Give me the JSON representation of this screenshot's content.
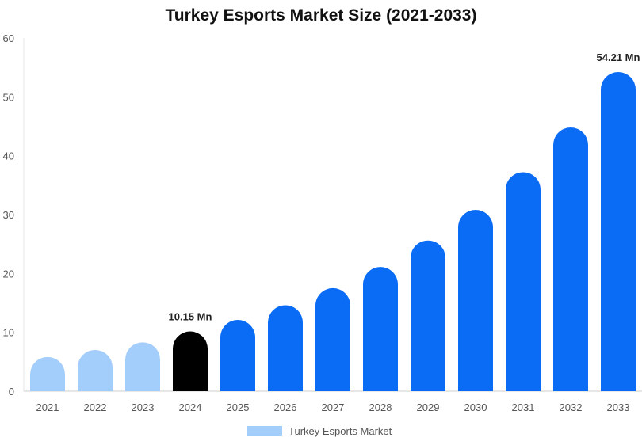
{
  "chart_data": {
    "type": "bar",
    "title": "Turkey Esports Market Size (2021-2033)",
    "categories": [
      "2021",
      "2022",
      "2023",
      "2024",
      "2025",
      "2026",
      "2027",
      "2028",
      "2029",
      "2030",
      "2031",
      "2032",
      "2033"
    ],
    "series": [
      {
        "name": "Turkey Esports Market",
        "values": [
          5.8,
          7.0,
          8.3,
          10.15,
          12.1,
          14.6,
          17.5,
          21.1,
          25.6,
          30.8,
          37.2,
          44.8,
          54.21
        ]
      }
    ],
    "bar_colors": [
      "#a3cdfb",
      "#a3cdfb",
      "#a3cdfb",
      "#000000",
      "#0a6bf5",
      "#0a6bf5",
      "#0a6bf5",
      "#0a6bf5",
      "#0a6bf5",
      "#0a6bf5",
      "#0a6bf5",
      "#0a6bf5",
      "#0a6bf5"
    ],
    "data_labels": [
      {
        "category": "2024",
        "text": "10.15 Mn"
      },
      {
        "category": "2033",
        "text": "54.21 Mn"
      }
    ],
    "xlabel": "",
    "ylabel": "",
    "ylim": [
      0,
      60
    ],
    "yticks": [
      0,
      10,
      20,
      30,
      40,
      50,
      60
    ],
    "grid": false,
    "legend": {
      "position": "bottom",
      "label": "Turkey Esports Market",
      "color": "#a3cdfb"
    }
  }
}
